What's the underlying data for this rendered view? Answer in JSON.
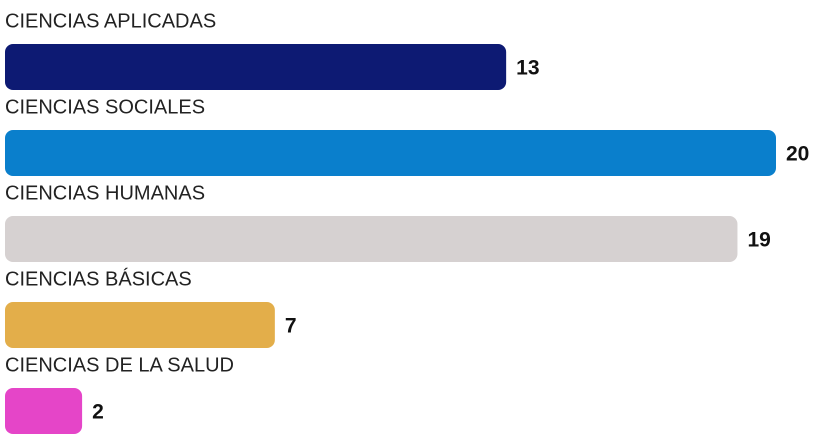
{
  "chart_data": {
    "type": "bar",
    "orientation": "horizontal",
    "categories": [
      "CIENCIAS APLICADAS",
      "CIENCIAS SOCIALES",
      "CIENCIAS HUMANAS",
      "CIENCIAS BÁSICAS",
      "CIENCIAS DE LA SALUD"
    ],
    "values": [
      13,
      20,
      19,
      7,
      2
    ],
    "colors": [
      "#0d1a73",
      "#0a7fcc",
      "#d6d1d1",
      "#e3ae4a",
      "#e545c8"
    ]
  }
}
